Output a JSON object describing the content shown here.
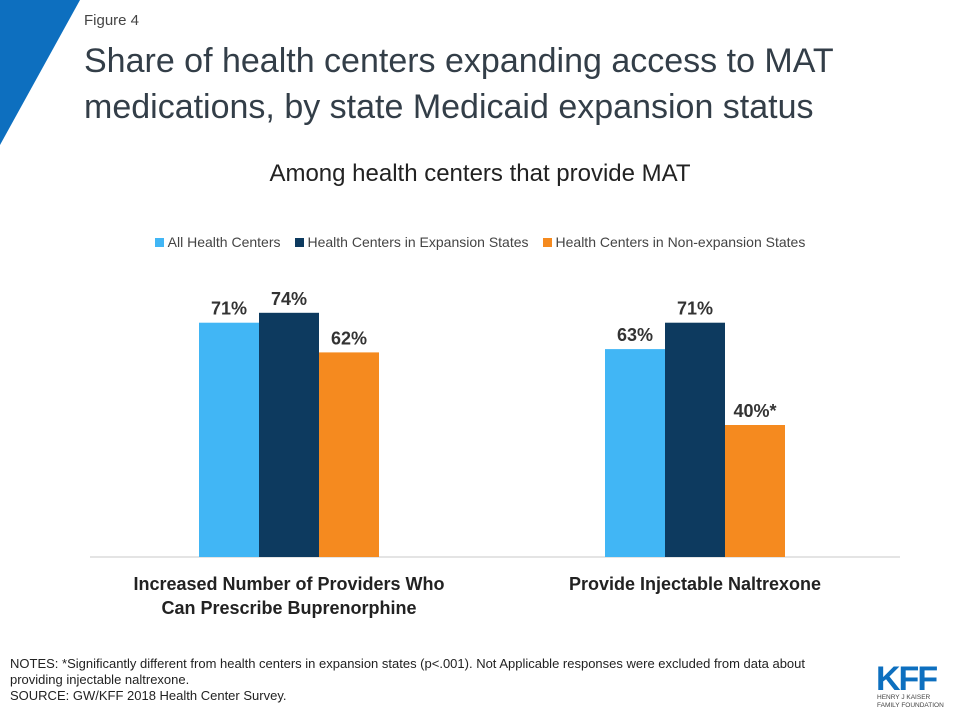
{
  "header": {
    "figure_label": "Figure 4",
    "title": "Share of health centers expanding access to MAT medications, by state Medicaid expansion status",
    "subtitle": "Among health centers that provide MAT"
  },
  "colors": {
    "corner": "#0d6fbf",
    "all": "#41b6f5",
    "expansion": "#0d3a5f",
    "nonexpansion": "#f58a1f",
    "logo": "#0d6fbf"
  },
  "chart_data": {
    "type": "bar",
    "title": "Among health centers that provide MAT",
    "categories": [
      "Increased Number of Providers Who Can Prescribe Buprenorphine",
      "Provide Injectable Naltrexone"
    ],
    "category_lines": [
      [
        "Increased Number of Providers Who",
        "Can Prescribe Buprenorphine"
      ],
      [
        "Provide Injectable Naltrexone"
      ]
    ],
    "series": [
      {
        "name": "All Health Centers",
        "values": [
          71,
          63
        ],
        "labels": [
          "71%",
          "63%"
        ]
      },
      {
        "name": "Health Centers in Expansion States",
        "values": [
          74,
          71
        ],
        "labels": [
          "74%",
          "71%"
        ]
      },
      {
        "name": "Health Centers in Non-expansion States",
        "values": [
          62,
          40
        ],
        "labels": [
          "62%",
          "40%*"
        ]
      }
    ],
    "ylim": [
      0,
      100
    ],
    "grid": false,
    "legend_position": "top-center"
  },
  "notes": {
    "line1": "NOTES: *Significantly different from health centers in expansion states (p<.001). Not Applicable responses were excluded from data about providing injectable naltrexone.",
    "source": "SOURCE: GW/KFF 2018 Health Center Survey."
  },
  "logo": {
    "mark": "KFF",
    "line1": "HENRY J KAISER",
    "line2": "FAMILY FOUNDATION"
  }
}
